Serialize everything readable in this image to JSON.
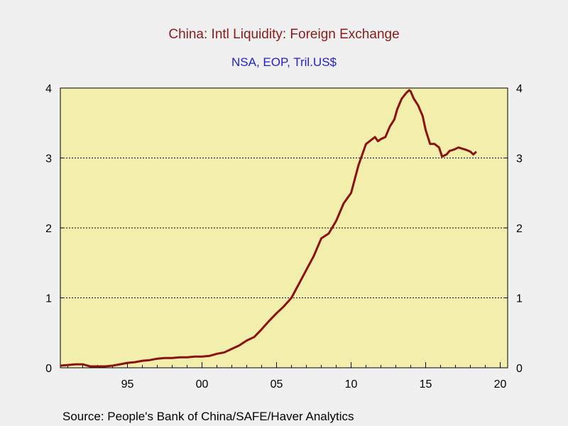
{
  "chart_data": {
    "type": "line",
    "title": "China: Intl Liquidity: Foreign Exchange",
    "subtitle": "NSA, EOP, Tril.US$",
    "source": "Source:  People's Bank of China/SAFE/Haver Analytics",
    "x_tick_labels": [
      "95",
      "00",
      "05",
      "10",
      "15",
      "20"
    ],
    "x_tick_values": [
      1995,
      2000,
      2005,
      2010,
      2015,
      2020
    ],
    "xlim": [
      1990.5,
      2020.5
    ],
    "y_tick_labels": [
      "0",
      "1",
      "2",
      "3",
      "4"
    ],
    "ylim": [
      0,
      4
    ],
    "grid": "horizontal dashed",
    "plot_background": "#f2eeac",
    "series": [
      {
        "color": "#8b1010",
        "x": [
          1990.5,
          1991.0,
          1991.5,
          1992.0,
          1992.5,
          1993.0,
          1993.5,
          1994.0,
          1994.5,
          1995.0,
          1995.5,
          1996.0,
          1996.5,
          1997.0,
          1997.5,
          1998.0,
          1998.5,
          1999.0,
          1999.5,
          2000.0,
          2000.5,
          2001.0,
          2001.5,
          2002.0,
          2002.5,
          2003.0,
          2003.5,
          2004.0,
          2004.5,
          2005.0,
          2005.5,
          2006.0,
          2006.5,
          2007.0,
          2007.5,
          2008.0,
          2008.5,
          2009.0,
          2009.5,
          2010.0,
          2010.5,
          2011.0,
          2011.3,
          2011.6,
          2011.8,
          2012.0,
          2012.3,
          2012.6,
          2012.9,
          2013.1,
          2013.4,
          2013.7,
          2013.9,
          2014.0,
          2014.2,
          2014.5,
          2014.8,
          2015.0,
          2015.3,
          2015.6,
          2015.9,
          2016.1,
          2016.4,
          2016.6,
          2016.9,
          2017.2,
          2017.5,
          2017.8,
          2018.0,
          2018.2,
          2018.4
        ],
        "y": [
          0.03,
          0.04,
          0.05,
          0.05,
          0.02,
          0.02,
          0.02,
          0.03,
          0.05,
          0.07,
          0.08,
          0.1,
          0.11,
          0.13,
          0.14,
          0.14,
          0.15,
          0.15,
          0.16,
          0.16,
          0.17,
          0.2,
          0.22,
          0.27,
          0.32,
          0.39,
          0.44,
          0.55,
          0.67,
          0.78,
          0.88,
          1.0,
          1.2,
          1.4,
          1.6,
          1.85,
          1.92,
          2.1,
          2.35,
          2.5,
          2.9,
          3.2,
          3.25,
          3.3,
          3.24,
          3.27,
          3.3,
          3.45,
          3.55,
          3.7,
          3.85,
          3.93,
          3.97,
          3.95,
          3.85,
          3.75,
          3.6,
          3.4,
          3.2,
          3.2,
          3.15,
          3.02,
          3.05,
          3.1,
          3.12,
          3.15,
          3.13,
          3.11,
          3.09,
          3.05,
          3.09
        ]
      }
    ]
  }
}
